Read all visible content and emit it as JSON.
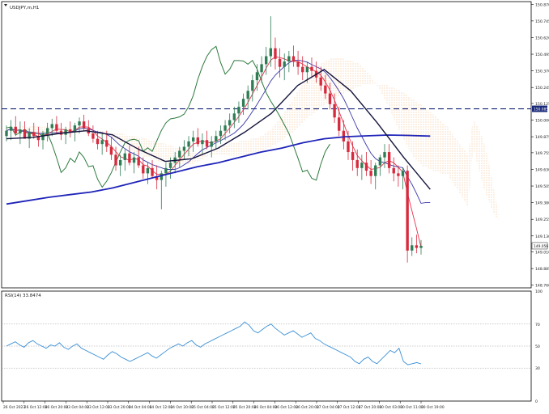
{
  "chart_data": [
    {
      "type": "candlestick",
      "title": "USDJPY,m,H1",
      "y_ticks": [
        "150.870",
        "150.745",
        "150.620",
        "150.495",
        "150.370",
        "150.245",
        "150.125",
        "150.000",
        "149.875",
        "149.755",
        "149.630",
        "149.505",
        "149.380",
        "149.255",
        "149.130",
        "149.010",
        "148.885",
        "148.760"
      ],
      "ylim": [
        148.74,
        150.89
      ],
      "x_ticks": [
        "26 Oct 2023",
        "26 Oct 12:00",
        "26 Oct 20:00",
        "23 Oct 04:00",
        "23 Oct 12:00",
        "23 Oct 20:00",
        "24 Oct 04:00",
        "24 Oct 12:00",
        "24 Oct 20:00",
        "25 Oct 04:00",
        "25 Oct 12:00",
        "25 Oct 20:00",
        "26 Oct 04:00",
        "26 Oct 12:00",
        "26 Oct 20:00",
        "27 Oct 04:00",
        "27 Oct 12:00",
        "27 Oct 20:00",
        "30 Oct 03:00",
        "30 Oct 11:00",
        "30 Oct 19:00"
      ],
      "hline": {
        "value": 150.085,
        "label": "150.085",
        "color": "#1a2a7a"
      },
      "current_price": {
        "value": 149.056,
        "label": "149.056"
      },
      "colors": {
        "up": "#2f7d55",
        "down": "#d62b3e",
        "ma_slow": "#1f24b8",
        "ma_fast": "#14143c",
        "tenkan": "#e0324b",
        "kijun": "#3a37a8",
        "chikou": "#2c7a3c",
        "kumo": "#f0a35a"
      },
      "candles": [
        [
          149.88,
          149.96,
          149.84,
          149.92
        ],
        [
          149.92,
          150.0,
          149.85,
          149.95
        ],
        [
          149.95,
          150.03,
          149.88,
          149.9
        ],
        [
          149.9,
          149.99,
          149.82,
          149.93
        ],
        [
          149.93,
          149.99,
          149.88,
          149.86
        ],
        [
          149.86,
          149.94,
          149.79,
          149.91
        ],
        [
          149.91,
          149.98,
          149.86,
          149.88
        ],
        [
          149.88,
          149.95,
          149.8,
          149.85
        ],
        [
          149.85,
          149.92,
          149.78,
          149.9
        ],
        [
          149.9,
          149.98,
          149.84,
          149.94
        ],
        [
          149.94,
          150.01,
          149.88,
          149.97
        ],
        [
          149.97,
          150.03,
          149.9,
          149.92
        ],
        [
          149.92,
          149.98,
          149.85,
          149.89
        ],
        [
          149.89,
          149.95,
          149.82,
          149.93
        ],
        [
          149.93,
          149.99,
          149.87,
          149.91
        ],
        [
          149.91,
          149.98,
          149.84,
          149.96
        ],
        [
          149.96,
          150.02,
          149.9,
          149.99
        ],
        [
          149.99,
          150.04,
          149.92,
          149.94
        ],
        [
          149.94,
          150.0,
          149.88,
          149.9
        ],
        [
          149.9,
          149.96,
          149.83,
          149.86
        ],
        [
          149.86,
          149.92,
          149.78,
          149.82
        ],
        [
          149.82,
          149.9,
          149.74,
          149.85
        ],
        [
          149.85,
          149.92,
          149.76,
          149.8
        ],
        [
          149.8,
          149.87,
          149.7,
          149.74
        ],
        [
          149.74,
          149.8,
          149.62,
          149.66
        ],
        [
          149.66,
          149.74,
          149.58,
          149.7
        ],
        [
          149.7,
          149.78,
          149.62,
          149.75
        ],
        [
          149.75,
          149.81,
          149.66,
          149.68
        ],
        [
          149.68,
          149.76,
          149.6,
          149.72
        ],
        [
          149.72,
          149.8,
          149.64,
          149.66
        ],
        [
          149.66,
          149.72,
          149.56,
          149.6
        ],
        [
          149.6,
          149.68,
          149.52,
          149.64
        ],
        [
          149.64,
          149.7,
          149.56,
          149.58
        ],
        [
          149.58,
          149.66,
          149.48,
          149.55
        ],
        [
          149.55,
          149.62,
          149.33,
          149.6
        ],
        [
          149.6,
          149.68,
          149.5,
          149.64
        ],
        [
          149.64,
          149.72,
          149.56,
          149.68
        ],
        [
          149.68,
          149.76,
          149.6,
          149.72
        ],
        [
          149.72,
          149.8,
          149.64,
          149.77
        ],
        [
          149.77,
          149.85,
          149.7,
          149.8
        ],
        [
          149.8,
          149.88,
          149.73,
          149.84
        ],
        [
          149.84,
          149.92,
          149.76,
          149.87
        ],
        [
          149.87,
          149.94,
          149.8,
          149.82
        ],
        [
          149.82,
          149.9,
          149.74,
          149.85
        ],
        [
          149.85,
          149.92,
          149.78,
          149.8
        ],
        [
          149.8,
          149.88,
          149.72,
          149.84
        ],
        [
          149.84,
          149.92,
          149.78,
          149.88
        ],
        [
          149.88,
          149.96,
          149.82,
          149.92
        ],
        [
          149.92,
          150.0,
          149.85,
          149.96
        ],
        [
          149.96,
          150.05,
          149.9,
          150.0
        ],
        [
          150.0,
          150.1,
          149.94,
          150.05
        ],
        [
          150.05,
          150.14,
          149.98,
          150.1
        ],
        [
          150.1,
          150.2,
          150.04,
          150.16
        ],
        [
          150.16,
          150.26,
          150.08,
          150.22
        ],
        [
          150.22,
          150.34,
          150.14,
          150.3
        ],
        [
          150.3,
          150.42,
          150.22,
          150.36
        ],
        [
          150.36,
          150.48,
          150.28,
          150.42
        ],
        [
          150.42,
          150.55,
          150.34,
          150.48
        ],
        [
          150.48,
          150.78,
          150.4,
          150.54
        ],
        [
          150.54,
          150.62,
          150.38,
          150.46
        ],
        [
          150.46,
          150.54,
          150.32,
          150.4
        ],
        [
          150.4,
          150.5,
          150.3,
          150.44
        ],
        [
          150.44,
          150.52,
          150.36,
          150.48
        ],
        [
          150.48,
          150.56,
          150.4,
          150.44
        ],
        [
          150.44,
          150.52,
          150.34,
          150.4
        ],
        [
          150.4,
          150.48,
          150.3,
          150.36
        ],
        [
          150.36,
          150.44,
          150.28,
          150.4
        ],
        [
          150.4,
          150.47,
          150.32,
          150.37
        ],
        [
          150.37,
          150.44,
          150.28,
          150.32
        ],
        [
          150.32,
          150.4,
          150.22,
          150.26
        ],
        [
          150.26,
          150.34,
          150.16,
          150.2
        ],
        [
          150.2,
          150.28,
          150.08,
          150.12
        ],
        [
          150.12,
          150.2,
          149.98,
          150.02
        ],
        [
          150.02,
          150.1,
          149.88,
          149.92
        ],
        [
          149.92,
          150.0,
          149.78,
          149.84
        ],
        [
          149.84,
          149.92,
          149.7,
          149.76
        ],
        [
          149.76,
          149.84,
          149.62,
          149.7
        ],
        [
          149.7,
          149.78,
          149.58,
          149.64
        ],
        [
          149.64,
          149.74,
          149.55,
          149.68
        ],
        [
          149.68,
          149.76,
          149.58,
          149.62
        ],
        [
          149.62,
          149.7,
          149.52,
          149.58
        ],
        [
          149.58,
          149.68,
          149.48,
          149.66
        ],
        [
          149.66,
          149.74,
          149.58,
          149.72
        ],
        [
          149.72,
          149.82,
          149.64,
          149.76
        ],
        [
          149.76,
          149.82,
          149.6,
          149.64
        ],
        [
          149.64,
          149.72,
          149.54,
          149.6
        ],
        [
          149.6,
          149.66,
          149.5,
          149.58
        ],
        [
          149.58,
          149.64,
          149.48,
          149.62
        ],
        [
          149.62,
          149.66,
          148.93,
          149.02
        ],
        [
          149.02,
          149.12,
          148.98,
          149.06
        ],
        [
          149.06,
          149.14,
          149.0,
          149.04
        ],
        [
          149.04,
          149.1,
          148.99,
          149.056
        ]
      ],
      "series": [
        {
          "name": "MA slow",
          "color": "#1f24b8",
          "values": [
            149.37,
            149.395,
            149.42,
            149.44,
            149.46,
            149.49,
            149.53,
            149.57,
            149.61,
            149.65,
            149.68,
            149.72,
            149.76,
            149.79,
            149.83,
            149.86,
            149.875,
            149.882,
            149.888,
            149.885,
            149.88
          ]
        },
        {
          "name": "MA fast",
          "color": "#14143c",
          "values": [
            149.86,
            149.87,
            149.9,
            149.92,
            149.89,
            149.78,
            149.69,
            149.71,
            149.79,
            149.91,
            150.05,
            150.26,
            150.38,
            150.22,
            149.98,
            149.72,
            149.48
          ]
        }
      ],
      "rsi": {
        "label": "RSI(14) 33.8474",
        "ylim": [
          0,
          100
        ],
        "ticks": [
          "100",
          "70",
          "50",
          "30",
          "0"
        ],
        "levels": [
          70,
          50,
          30
        ],
        "color": "#3a8fd6",
        "values": [
          50,
          52,
          54,
          51,
          49,
          53,
          55,
          52,
          50,
          48,
          51,
          50,
          53,
          49,
          47,
          50,
          52,
          48,
          46,
          44,
          42,
          40,
          38,
          42,
          45,
          43,
          40,
          38,
          36,
          38,
          40,
          42,
          44,
          41,
          39,
          42,
          45,
          48,
          50,
          52,
          50,
          53,
          55,
          51,
          49,
          52,
          54,
          56,
          58,
          60,
          62,
          64,
          66,
          68,
          72,
          69,
          64,
          62,
          65,
          68,
          70,
          66,
          63,
          60,
          62,
          64,
          61,
          58,
          60,
          62,
          57,
          55,
          52,
          50,
          48,
          46,
          44,
          42,
          40,
          36,
          34,
          38,
          40,
          36,
          34,
          38,
          42,
          46,
          44,
          48,
          36,
          33,
          34,
          35,
          33.85
        ]
      }
    }
  ]
}
